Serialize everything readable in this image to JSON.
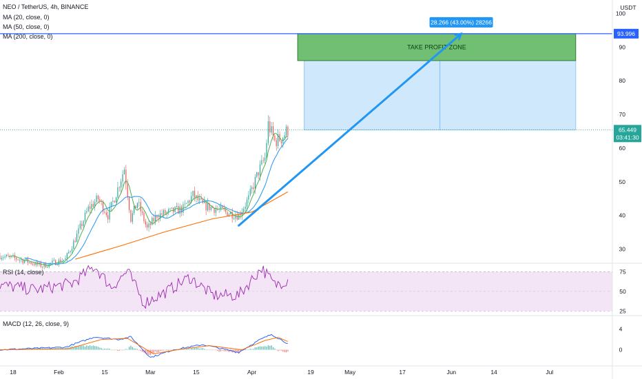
{
  "symbol_title": "NEO / TetherUS, 4h, BINANCE",
  "indicators": {
    "ma20": "MA (20, close, 0)",
    "ma50": "MA (50, close, 0)",
    "ma200": "MA (200, close, 0)",
    "rsi": "RSI (14, close)",
    "macd": "MACD (12, 26, close, 9)"
  },
  "colors": {
    "candle_up": "#26a69a",
    "candle_down": "#ef5350",
    "ma20": "#4caf50",
    "ma50": "#2196f3",
    "ma200": "#ff6d00",
    "target_line": "#2962ff",
    "arrow": "#2196f3",
    "take_profit_fill": "#4caf50",
    "range_fill": "#bbdefb",
    "rsi_line": "#9c27b0",
    "rsi_band": "#f3e5f5",
    "macd_line": "#2962ff",
    "signal_line": "#ff6d00"
  },
  "price_axis": {
    "currency": "USDT",
    "ticks": [
      "100",
      "90",
      "80",
      "70",
      "60",
      "50",
      "40",
      "30"
    ],
    "current_price": "65.449",
    "countdown": "03:41:30",
    "target_price": "93.996"
  },
  "rsi_axis": {
    "ticks": [
      "75",
      "50",
      "25"
    ]
  },
  "macd_axis": {
    "ticks": [
      "4",
      "0"
    ]
  },
  "time_axis": {
    "ticks": [
      "18",
      "Feb",
      "15",
      "Mar",
      "15",
      "Apr",
      "19",
      "May",
      "17",
      "Jun",
      "14",
      "Jul"
    ]
  },
  "drawings": {
    "take_profit_label": "TAKE PROFIT ZONE",
    "measure_label": "28.266 (43.00%) 28266",
    "take_profit_zone": [
      86,
      94
    ],
    "range_zone": [
      65.4,
      86
    ],
    "arrow_from": {
      "date": "2021-03-28",
      "price": 37
    },
    "arrow_to": {
      "date": "2021-06-04",
      "price": 94
    }
  },
  "chart_data": {
    "type": "candlestick",
    "title": "NEO / TetherUS, 4h, BINANCE",
    "x_range": [
      "2021-01-14",
      "2021-07-20"
    ],
    "ylim": [
      26,
      104
    ],
    "grid": false,
    "price_path": [
      {
        "date": "2021-01-14",
        "price": 28
      },
      {
        "date": "2021-01-20",
        "price": 27
      },
      {
        "date": "2021-01-27",
        "price": 25
      },
      {
        "date": "2021-02-03",
        "price": 27
      },
      {
        "date": "2021-02-06",
        "price": 33
      },
      {
        "date": "2021-02-10",
        "price": 42
      },
      {
        "date": "2021-02-13",
        "price": 45
      },
      {
        "date": "2021-02-16",
        "price": 40
      },
      {
        "date": "2021-02-19",
        "price": 48
      },
      {
        "date": "2021-02-21",
        "price": 54
      },
      {
        "date": "2021-02-23",
        "price": 39
      },
      {
        "date": "2021-02-25",
        "price": 44
      },
      {
        "date": "2021-02-28",
        "price": 36
      },
      {
        "date": "2021-03-03",
        "price": 40
      },
      {
        "date": "2021-03-07",
        "price": 41
      },
      {
        "date": "2021-03-11",
        "price": 42
      },
      {
        "date": "2021-03-14",
        "price": 46
      },
      {
        "date": "2021-03-17",
        "price": 43
      },
      {
        "date": "2021-03-21",
        "price": 42
      },
      {
        "date": "2021-03-24",
        "price": 41
      },
      {
        "date": "2021-03-28",
        "price": 40
      },
      {
        "date": "2021-03-31",
        "price": 45
      },
      {
        "date": "2021-04-03",
        "price": 53
      },
      {
        "date": "2021-04-05",
        "price": 57
      },
      {
        "date": "2021-04-06",
        "price": 67
      },
      {
        "date": "2021-04-08",
        "price": 62
      },
      {
        "date": "2021-04-10",
        "price": 63
      },
      {
        "date": "2021-04-12",
        "price": 65.449
      }
    ],
    "ma200_path": [
      {
        "date": "2021-02-06",
        "price": 27
      },
      {
        "date": "2021-02-20",
        "price": 31
      },
      {
        "date": "2021-03-05",
        "price": 35
      },
      {
        "date": "2021-03-20",
        "price": 39
      },
      {
        "date": "2021-04-01",
        "price": 41
      },
      {
        "date": "2021-04-12",
        "price": 47
      }
    ],
    "rsi": {
      "ylim": [
        20,
        85
      ],
      "path": [
        {
          "date": "2021-01-14",
          "price": 58
        },
        {
          "date": "2021-01-25",
          "price": 52
        },
        {
          "date": "2021-02-05",
          "price": 60
        },
        {
          "date": "2021-02-12",
          "price": 82
        },
        {
          "date": "2021-02-17",
          "price": 55
        },
        {
          "date": "2021-02-22",
          "price": 76
        },
        {
          "date": "2021-02-27",
          "price": 35
        },
        {
          "date": "2021-03-06",
          "price": 50
        },
        {
          "date": "2021-03-13",
          "price": 68
        },
        {
          "date": "2021-03-20",
          "price": 45
        },
        {
          "date": "2021-03-28",
          "price": 45
        },
        {
          "date": "2021-04-04",
          "price": 80
        },
        {
          "date": "2021-04-08",
          "price": 58
        },
        {
          "date": "2021-04-12",
          "price": 65
        }
      ]
    },
    "macd": {
      "ylim": [
        -3,
        6.5
      ],
      "macd_path": [
        {
          "date": "2021-01-14",
          "price": 0
        },
        {
          "date": "2021-02-03",
          "price": 0.5
        },
        {
          "date": "2021-02-12",
          "price": 2.5
        },
        {
          "date": "2021-02-19",
          "price": 2
        },
        {
          "date": "2021-02-23",
          "price": 2.5
        },
        {
          "date": "2021-03-01",
          "price": -1.5
        },
        {
          "date": "2021-03-08",
          "price": 0
        },
        {
          "date": "2021-03-17",
          "price": 1
        },
        {
          "date": "2021-03-28",
          "price": -0.5
        },
        {
          "date": "2021-04-03",
          "price": 1.8
        },
        {
          "date": "2021-04-07",
          "price": 3
        },
        {
          "date": "2021-04-12",
          "price": 1.2
        }
      ],
      "signal_path": [
        {
          "date": "2021-01-14",
          "price": 0
        },
        {
          "date": "2021-02-04",
          "price": 0.2
        },
        {
          "date": "2021-02-14",
          "price": 2
        },
        {
          "date": "2021-02-22",
          "price": 2.2
        },
        {
          "date": "2021-03-02",
          "price": -0.8
        },
        {
          "date": "2021-03-10",
          "price": 0.1
        },
        {
          "date": "2021-03-19",
          "price": 0.8
        },
        {
          "date": "2021-03-29",
          "price": 0
        },
        {
          "date": "2021-04-05",
          "price": 1.8
        },
        {
          "date": "2021-04-09",
          "price": 2.4
        },
        {
          "date": "2021-04-12",
          "price": 1.6
        }
      ]
    }
  }
}
